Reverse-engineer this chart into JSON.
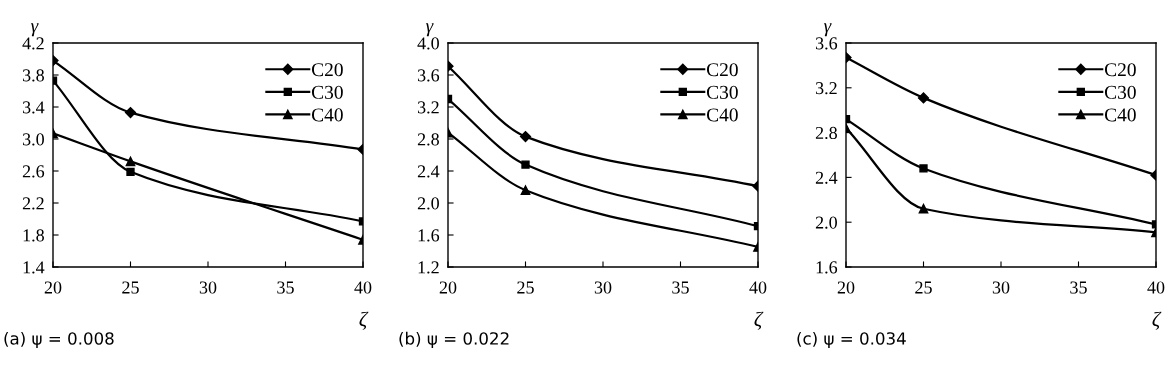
{
  "chart_data": [
    {
      "type": "line",
      "xlabel": "ζ",
      "ylabel": "γ",
      "x": [
        20,
        25,
        40
      ],
      "xlim": [
        20,
        40
      ],
      "xticks": [
        20,
        25,
        30,
        35,
        40
      ],
      "ylim": [
        1.4,
        4.2
      ],
      "yticks": [
        {
          "value": 1.4,
          "label": "1.4"
        },
        {
          "value": 1.8,
          "label": "1.8"
        },
        {
          "value": 2.2,
          "label": "2.2"
        },
        {
          "value": 2.6,
          "label": "2.6"
        },
        {
          "value": 3.0,
          "label": "3.0"
        },
        {
          "value": 3.4,
          "label": "3.4"
        },
        {
          "value": 3.8,
          "label": "3.8"
        },
        {
          "value": 4.2,
          "label": "4.2"
        }
      ],
      "grid": false,
      "legend": "top right",
      "line_style": "solid",
      "annotations": [
        "(a) ψ = 0.008"
      ],
      "series": [
        {
          "name": "C20",
          "color": "#000000",
          "marker": "diamond",
          "values": [
            3.98,
            3.33,
            2.87
          ]
        },
        {
          "name": "C30",
          "color": "#000000",
          "marker": "square",
          "values": [
            3.73,
            2.59,
            1.97
          ]
        },
        {
          "name": "C40",
          "color": "#000000",
          "marker": "triangle",
          "values": [
            3.07,
            2.72,
            1.74
          ]
        }
      ]
    },
    {
      "type": "line",
      "xlabel": "ζ",
      "ylabel": "γ",
      "x": [
        20,
        25,
        40
      ],
      "xlim": [
        20,
        40
      ],
      "xticks": [
        20,
        25,
        30,
        35,
        40
      ],
      "ylim": [
        1.2,
        4.0
      ],
      "yticks": [
        {
          "value": 1.2,
          "label": "1.2"
        },
        {
          "value": 1.6,
          "label": "1.6"
        },
        {
          "value": 2.0,
          "label": "2.0"
        },
        {
          "value": 2.4,
          "label": "2.4"
        },
        {
          "value": 2.8,
          "label": "2.8"
        },
        {
          "value": 3.2,
          "label": "3.2"
        },
        {
          "value": 3.6,
          "label": "3.6"
        },
        {
          "value": 4.0,
          "label": "4.0"
        }
      ],
      "grid": false,
      "legend": "top right",
      "line_style": "solid",
      "annotations": [
        "(b) ψ = 0.022"
      ],
      "series": [
        {
          "name": "C20",
          "color": "#000000",
          "marker": "diamond",
          "values": [
            3.71,
            2.83,
            2.21
          ]
        },
        {
          "name": "C30",
          "color": "#000000",
          "marker": "square",
          "values": [
            3.3,
            2.48,
            1.71
          ]
        },
        {
          "name": "C40",
          "color": "#000000",
          "marker": "triangle",
          "values": [
            2.88,
            2.16,
            1.45
          ]
        }
      ]
    },
    {
      "type": "line",
      "xlabel": "ζ",
      "ylabel": "γ",
      "x": [
        20,
        25,
        40
      ],
      "xlim": [
        20,
        40
      ],
      "xticks": [
        20,
        25,
        30,
        35,
        40
      ],
      "ylim": [
        1.6,
        3.6
      ],
      "yticks": [
        {
          "value": 1.6,
          "label": "1.6"
        },
        {
          "value": 2.0,
          "label": "2.0"
        },
        {
          "value": 2.4,
          "label": "2.4"
        },
        {
          "value": 2.8,
          "label": "2.8"
        },
        {
          "value": 3.2,
          "label": "3.2"
        },
        {
          "value": 3.6,
          "label": "3.6"
        }
      ],
      "grid": false,
      "legend": "top right",
      "line_style": "solid",
      "annotations": [
        "(c) ψ = 0.034"
      ],
      "series": [
        {
          "name": "C20",
          "color": "#000000",
          "marker": "diamond",
          "values": [
            3.47,
            3.11,
            2.42
          ]
        },
        {
          "name": "C30",
          "color": "#000000",
          "marker": "square",
          "values": [
            2.92,
            2.48,
            1.98
          ]
        },
        {
          "name": "C40",
          "color": "#000000",
          "marker": "triangle",
          "values": [
            2.84,
            2.12,
            1.91
          ]
        }
      ]
    }
  ]
}
